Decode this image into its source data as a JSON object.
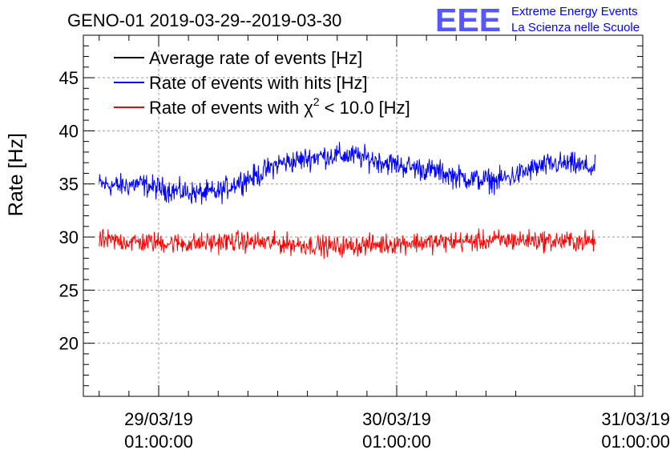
{
  "chart_data": {
    "type": "line",
    "title": "GENO-01 2019-03-29--2019-03-30",
    "ylabel": "Rate [Hz]",
    "xlabel": "",
    "ylim": [
      15,
      49
    ],
    "y_ticks": [
      "20",
      "25",
      "30",
      "35",
      "40",
      "45"
    ],
    "x_ticks": [
      {
        "date": "29/03/19",
        "time": "01:00:00"
      },
      {
        "date": "30/03/19",
        "time": "01:00:00"
      },
      {
        "date": "31/03/19",
        "time": "01:00:00"
      }
    ],
    "grid": true,
    "legend_position": "top-left",
    "legend": [
      {
        "label": "Average rate of events [Hz]",
        "color": "#000000"
      },
      {
        "label_prefix": "Rate of events with hits [Hz]",
        "color": "#0000ff"
      },
      {
        "label_prefix": "Rate of events with χ",
        "superscript": "2",
        "label_suffix": " < 10.0 [Hz]",
        "color": "#ff0000"
      }
    ],
    "series": [
      {
        "name": "Rate of events with hits [Hz]",
        "color": "#0000ff",
        "x": [
          "2019-03-28 19:00",
          "2019-03-28 21:00",
          "2019-03-28 23:00",
          "2019-03-29 01:00",
          "2019-03-29 03:00",
          "2019-03-29 05:00",
          "2019-03-29 07:00",
          "2019-03-29 09:00",
          "2019-03-29 11:00",
          "2019-03-29 13:00",
          "2019-03-29 15:00",
          "2019-03-29 17:00",
          "2019-03-29 19:00",
          "2019-03-29 21:00",
          "2019-03-29 23:00",
          "2019-03-30 01:00",
          "2019-03-30 03:00",
          "2019-03-30 05:00",
          "2019-03-30 07:00",
          "2019-03-30 09:00",
          "2019-03-30 11:00",
          "2019-03-30 13:00",
          "2019-03-30 15:00",
          "2019-03-30 17:00",
          "2019-03-30 19:00",
          "2019-03-30 21:00"
        ],
        "values": [
          35.0,
          34.8,
          35.0,
          34.6,
          34.3,
          34.1,
          34.2,
          35.2,
          35.8,
          36.9,
          37.2,
          37.6,
          37.7,
          37.6,
          37.2,
          36.8,
          36.5,
          36.2,
          35.7,
          35.4,
          35.3,
          35.8,
          36.5,
          36.9,
          36.8,
          36.4
        ],
        "noise": 0.9
      },
      {
        "name": "Rate of events with χ2 < 10.0 [Hz]",
        "color": "#ff0000",
        "x": [
          "2019-03-28 19:00",
          "2019-03-28 21:00",
          "2019-03-28 23:00",
          "2019-03-29 01:00",
          "2019-03-29 03:00",
          "2019-03-29 05:00",
          "2019-03-29 07:00",
          "2019-03-29 09:00",
          "2019-03-29 11:00",
          "2019-03-29 13:00",
          "2019-03-29 15:00",
          "2019-03-29 17:00",
          "2019-03-29 19:00",
          "2019-03-29 21:00",
          "2019-03-29 23:00",
          "2019-03-30 01:00",
          "2019-03-30 03:00",
          "2019-03-30 05:00",
          "2019-03-30 07:00",
          "2019-03-30 09:00",
          "2019-03-30 11:00",
          "2019-03-30 13:00",
          "2019-03-30 15:00",
          "2019-03-30 17:00",
          "2019-03-30 19:00",
          "2019-03-30 21:00"
        ],
        "values": [
          29.7,
          29.6,
          29.5,
          29.5,
          29.4,
          29.4,
          29.5,
          29.6,
          29.5,
          29.4,
          29.3,
          29.2,
          29.1,
          29.2,
          29.3,
          29.4,
          29.5,
          29.5,
          29.6,
          29.6,
          29.7,
          29.7,
          29.7,
          29.6,
          29.6,
          29.6
        ],
        "noise": 0.8
      }
    ]
  },
  "logo": {
    "mark": "EEE",
    "line1": "Extreme Energy Events",
    "line2": "La Scienza nelle Scuole",
    "color": "#0000ff"
  }
}
